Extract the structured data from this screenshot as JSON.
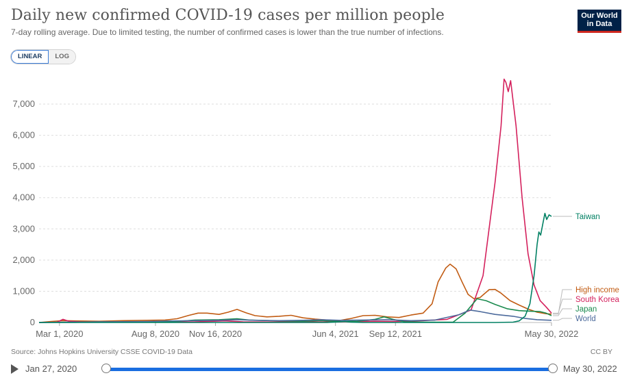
{
  "header": {
    "title": "Daily new confirmed COVID-19 cases per million people",
    "subtitle": "7-day rolling average. Due to limited testing, the number of confirmed cases is lower than the true number of infections.",
    "logo_line1": "Our World",
    "logo_line2": "in Data"
  },
  "controls": {
    "linear_label": "LINEAR",
    "log_label": "LOG"
  },
  "footer": {
    "source": "Source: Johns Hopkins University CSSE COVID-19 Data",
    "license": "CC BY"
  },
  "timeline": {
    "start_label": "Jan 27, 2020",
    "end_label": "May 30, 2022"
  },
  "chart_data": {
    "type": "line",
    "title": "Daily new confirmed COVID-19 cases per million people",
    "xlabel": "",
    "ylabel": "",
    "ylim": [
      0,
      7800
    ],
    "xlim_days": [
      0,
      854
    ],
    "x_unit": "days since Jan 27, 2020",
    "y_ticks": [
      {
        "value": 0,
        "label": "0"
      },
      {
        "value": 1000,
        "label": "1,000"
      },
      {
        "value": 2000,
        "label": "2,000"
      },
      {
        "value": 3000,
        "label": "3,000"
      },
      {
        "value": 4000,
        "label": "4,000"
      },
      {
        "value": 5000,
        "label": "5,000"
      },
      {
        "value": 6000,
        "label": "6,000"
      },
      {
        "value": 7000,
        "label": "7,000"
      }
    ],
    "x_ticks": [
      {
        "day": 34,
        "label": "Mar 1, 2020"
      },
      {
        "day": 194,
        "label": "Aug 8, 2020"
      },
      {
        "day": 294,
        "label": "Nov 16, 2020"
      },
      {
        "day": 494,
        "label": "Jun 4, 2021"
      },
      {
        "day": 594,
        "label": "Sep 12, 2021"
      },
      {
        "day": 854,
        "label": "May 30, 2022"
      }
    ],
    "series": [
      {
        "name": "High income",
        "color": "#c15b12",
        "points": [
          [
            0,
            0
          ],
          [
            20,
            30
          ],
          [
            40,
            60
          ],
          [
            60,
            50
          ],
          [
            100,
            40
          ],
          [
            140,
            60
          ],
          [
            180,
            70
          ],
          [
            210,
            80
          ],
          [
            230,
            120
          ],
          [
            250,
            230
          ],
          [
            265,
            300
          ],
          [
            280,
            300
          ],
          [
            300,
            260
          ],
          [
            315,
            330
          ],
          [
            330,
            420
          ],
          [
            345,
            310
          ],
          [
            360,
            220
          ],
          [
            380,
            180
          ],
          [
            400,
            200
          ],
          [
            420,
            230
          ],
          [
            440,
            150
          ],
          [
            460,
            110
          ],
          [
            480,
            80
          ],
          [
            500,
            60
          ],
          [
            520,
            130
          ],
          [
            540,
            220
          ],
          [
            560,
            230
          ],
          [
            580,
            180
          ],
          [
            600,
            160
          ],
          [
            620,
            240
          ],
          [
            640,
            300
          ],
          [
            655,
            600
          ],
          [
            665,
            1300
          ],
          [
            678,
            1750
          ],
          [
            685,
            1870
          ],
          [
            695,
            1720
          ],
          [
            705,
            1300
          ],
          [
            715,
            900
          ],
          [
            725,
            760
          ],
          [
            735,
            800
          ],
          [
            750,
            1050
          ],
          [
            760,
            1060
          ],
          [
            770,
            940
          ],
          [
            785,
            700
          ],
          [
            800,
            560
          ],
          [
            815,
            430
          ],
          [
            830,
            330
          ],
          [
            845,
            280
          ],
          [
            854,
            270
          ]
        ]
      },
      {
        "name": "South Korea",
        "color": "#d4205c",
        "points": [
          [
            0,
            0
          ],
          [
            30,
            10
          ],
          [
            40,
            100
          ],
          [
            50,
            40
          ],
          [
            80,
            10
          ],
          [
            200,
            15
          ],
          [
            260,
            20
          ],
          [
            310,
            50
          ],
          [
            340,
            20
          ],
          [
            400,
            15
          ],
          [
            480,
            15
          ],
          [
            560,
            40
          ],
          [
            590,
            30
          ],
          [
            640,
            60
          ],
          [
            680,
            100
          ],
          [
            720,
            400
          ],
          [
            740,
            1500
          ],
          [
            760,
            4500
          ],
          [
            770,
            6300
          ],
          [
            775,
            7800
          ],
          [
            778,
            7700
          ],
          [
            782,
            7400
          ],
          [
            786,
            7750
          ],
          [
            795,
            6300
          ],
          [
            805,
            4000
          ],
          [
            815,
            2200
          ],
          [
            825,
            1200
          ],
          [
            835,
            700
          ],
          [
            845,
            500
          ],
          [
            854,
            300
          ]
        ]
      },
      {
        "name": "Japan",
        "color": "#1a8a4e",
        "points": [
          [
            0,
            0
          ],
          [
            60,
            5
          ],
          [
            100,
            20
          ],
          [
            180,
            10
          ],
          [
            220,
            20
          ],
          [
            260,
            80
          ],
          [
            300,
            90
          ],
          [
            330,
            120
          ],
          [
            350,
            80
          ],
          [
            400,
            50
          ],
          [
            440,
            40
          ],
          [
            470,
            60
          ],
          [
            500,
            30
          ],
          [
            530,
            40
          ],
          [
            560,
            100
          ],
          [
            575,
            180
          ],
          [
            590,
            100
          ],
          [
            610,
            20
          ],
          [
            650,
            10
          ],
          [
            690,
            10
          ],
          [
            710,
            300
          ],
          [
            730,
            760
          ],
          [
            745,
            700
          ],
          [
            760,
            580
          ],
          [
            780,
            440
          ],
          [
            800,
            380
          ],
          [
            820,
            360
          ],
          [
            835,
            350
          ],
          [
            845,
            300
          ],
          [
            854,
            220
          ]
        ]
      },
      {
        "name": "World",
        "color": "#4c6a9c",
        "points": [
          [
            0,
            0
          ],
          [
            40,
            10
          ],
          [
            100,
            20
          ],
          [
            180,
            30
          ],
          [
            220,
            50
          ],
          [
            260,
            60
          ],
          [
            300,
            70
          ],
          [
            330,
            90
          ],
          [
            360,
            70
          ],
          [
            400,
            60
          ],
          [
            440,
            70
          ],
          [
            470,
            90
          ],
          [
            500,
            70
          ],
          [
            540,
            80
          ],
          [
            580,
            90
          ],
          [
            620,
            60
          ],
          [
            660,
            80
          ],
          [
            700,
            250
          ],
          [
            718,
            400
          ],
          [
            735,
            350
          ],
          [
            760,
            260
          ],
          [
            790,
            200
          ],
          [
            810,
            130
          ],
          [
            830,
            90
          ],
          [
            854,
            70
          ]
        ]
      },
      {
        "name": "Taiwan",
        "color": "#008063",
        "points": [
          [
            0,
            0
          ],
          [
            200,
            0
          ],
          [
            480,
            0
          ],
          [
            500,
            20
          ],
          [
            510,
            30
          ],
          [
            520,
            10
          ],
          [
            540,
            0
          ],
          [
            600,
            0
          ],
          [
            700,
            0
          ],
          [
            760,
            0
          ],
          [
            790,
            10
          ],
          [
            800,
            50
          ],
          [
            810,
            200
          ],
          [
            818,
            600
          ],
          [
            825,
            1500
          ],
          [
            830,
            2500
          ],
          [
            833,
            2900
          ],
          [
            836,
            2800
          ],
          [
            840,
            3200
          ],
          [
            843,
            3500
          ],
          [
            846,
            3300
          ],
          [
            850,
            3450
          ],
          [
            854,
            3400
          ]
        ]
      }
    ],
    "end_labels": [
      {
        "series": "Taiwan",
        "label": "Taiwan"
      },
      {
        "series": "High income",
        "label": "High income"
      },
      {
        "series": "South Korea",
        "label": "South Korea"
      },
      {
        "series": "Japan",
        "label": "Japan"
      },
      {
        "series": "World",
        "label": "World"
      }
    ]
  }
}
